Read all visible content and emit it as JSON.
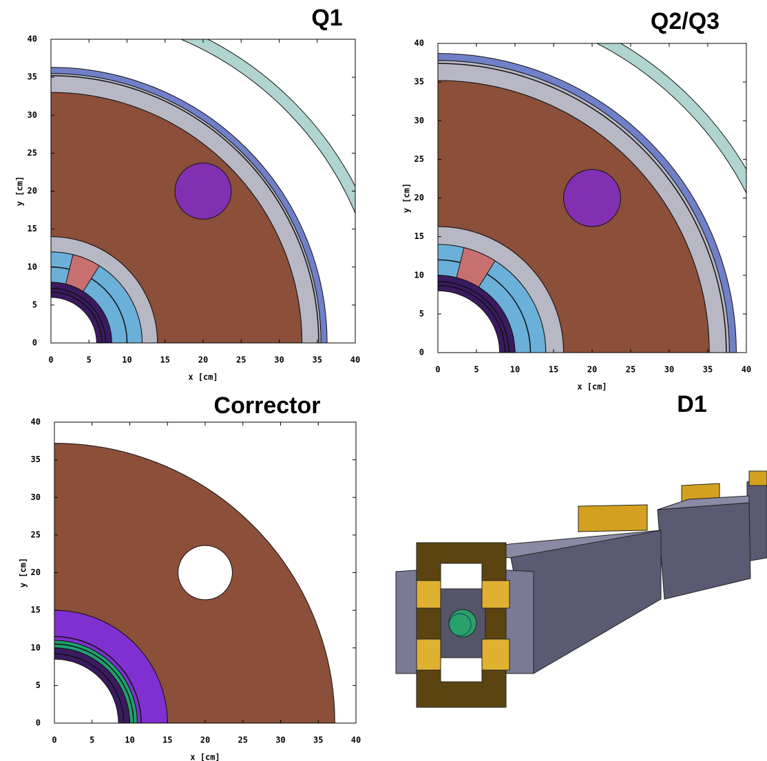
{
  "panels": [
    {
      "title": "Q1",
      "x_label": "x [cm]",
      "y_label": "y [cm]",
      "xlim": [
        0,
        40
      ],
      "ylim": [
        0,
        40
      ],
      "xticks": [
        0,
        5,
        10,
        15,
        20,
        25,
        30,
        35,
        40
      ],
      "yticks": [
        0,
        5,
        10,
        15,
        20,
        25,
        30,
        35,
        40
      ]
    },
    {
      "title": "Q2/Q3",
      "x_label": "x [cm]",
      "y_label": "y [cm]",
      "xlim": [
        0,
        40
      ],
      "ylim": [
        0,
        40
      ],
      "xticks": [
        0,
        5,
        10,
        15,
        20,
        25,
        30,
        35,
        40
      ],
      "yticks": [
        0,
        5,
        10,
        15,
        20,
        25,
        30,
        35,
        40
      ]
    },
    {
      "title": "Corrector",
      "x_label": "x [cm]",
      "y_label": "y [cm]",
      "xlim": [
        0,
        40
      ],
      "ylim": [
        0,
        40
      ],
      "xticks": [
        0,
        5,
        10,
        15,
        20,
        25,
        30,
        35,
        40
      ],
      "yticks": [
        0,
        5,
        10,
        15,
        20,
        25,
        30,
        35,
        40
      ]
    }
  ],
  "render": {
    "title": "D1"
  }
}
